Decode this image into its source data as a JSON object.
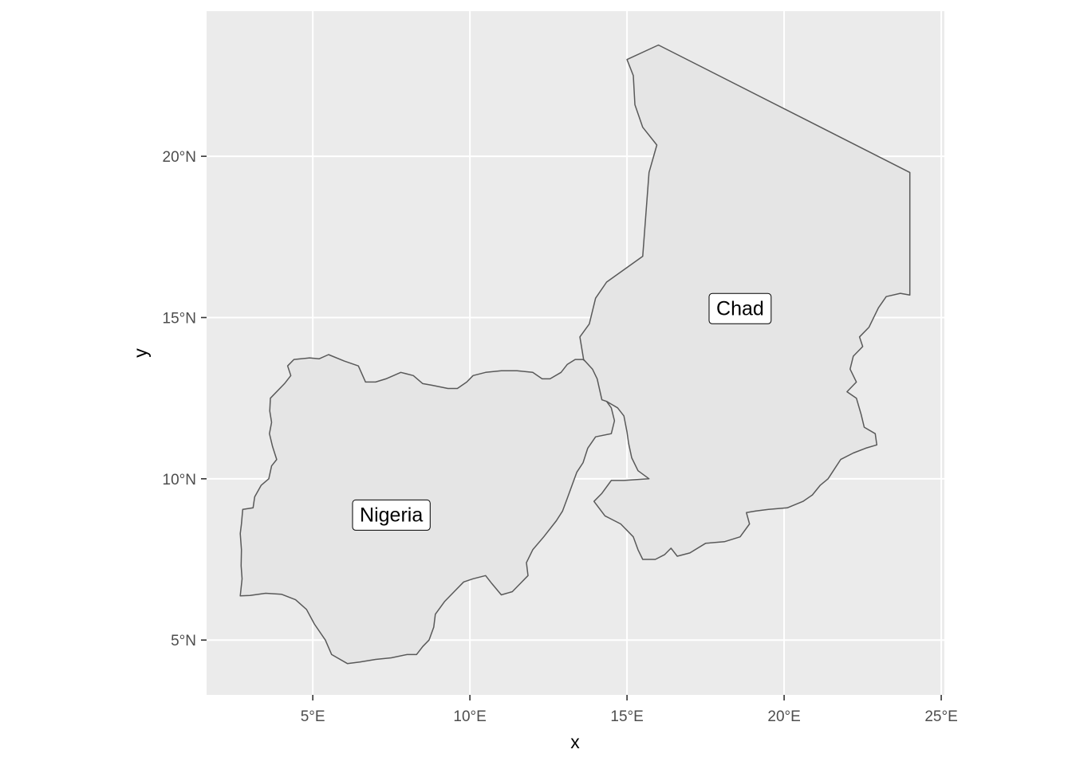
{
  "map": {
    "xlabel": "x",
    "ylabel": "y",
    "x_ticks": [
      {
        "value": 5,
        "label": "5°E"
      },
      {
        "value": 10,
        "label": "10°E"
      },
      {
        "value": 15,
        "label": "15°E"
      },
      {
        "value": 20,
        "label": "20°E"
      },
      {
        "value": 25,
        "label": "25°E"
      }
    ],
    "y_ticks": [
      {
        "value": 5,
        "label": "5°N"
      },
      {
        "value": 10,
        "label": "10°N"
      },
      {
        "value": 15,
        "label": "15°N"
      },
      {
        "value": 20,
        "label": "20°N"
      }
    ],
    "xlim": [
      1.62,
      25.1
    ],
    "ylim": [
      3.3,
      24.5
    ],
    "grid": true,
    "colors": {
      "panel": "#ebebeb",
      "grid": "#ffffff",
      "fill": "#e5e5e5",
      "outline": "#595959"
    },
    "countries": [
      {
        "id": "nigeria",
        "name": "Nigeria",
        "label_lon": 7.5,
        "label_lat": 8.9,
        "outline": [
          [
            2.69,
            6.37
          ],
          [
            2.75,
            6.9
          ],
          [
            2.72,
            7.3
          ],
          [
            2.73,
            7.8
          ],
          [
            2.69,
            8.3
          ],
          [
            2.73,
            8.6
          ],
          [
            2.77,
            9.05
          ],
          [
            3.1,
            9.1
          ],
          [
            3.15,
            9.44
          ],
          [
            3.36,
            9.8
          ],
          [
            3.6,
            10.0
          ],
          [
            3.69,
            10.4
          ],
          [
            3.85,
            10.6
          ],
          [
            3.72,
            11.0
          ],
          [
            3.62,
            11.4
          ],
          [
            3.69,
            11.75
          ],
          [
            3.63,
            12.1
          ],
          [
            3.65,
            12.5
          ],
          [
            4.1,
            12.95
          ],
          [
            4.3,
            13.2
          ],
          [
            4.2,
            13.5
          ],
          [
            4.4,
            13.7
          ],
          [
            4.9,
            13.75
          ],
          [
            5.2,
            13.72
          ],
          [
            5.5,
            13.85
          ],
          [
            6.0,
            13.65
          ],
          [
            6.45,
            13.5
          ],
          [
            6.68,
            13.0
          ],
          [
            7.0,
            13.0
          ],
          [
            7.33,
            13.1
          ],
          [
            7.8,
            13.3
          ],
          [
            8.2,
            13.2
          ],
          [
            8.5,
            12.95
          ],
          [
            8.8,
            12.9
          ],
          [
            9.3,
            12.8
          ],
          [
            9.6,
            12.8
          ],
          [
            9.9,
            13.0
          ],
          [
            10.1,
            13.2
          ],
          [
            10.5,
            13.3
          ],
          [
            11.0,
            13.35
          ],
          [
            11.5,
            13.35
          ],
          [
            12.0,
            13.3
          ],
          [
            12.3,
            13.1
          ],
          [
            12.55,
            13.1
          ],
          [
            12.9,
            13.3
          ],
          [
            13.1,
            13.55
          ],
          [
            13.35,
            13.7
          ],
          [
            13.6,
            13.7
          ],
          [
            14.0,
            13.4
          ],
          [
            14.15,
            13.0
          ],
          [
            14.2,
            12.5
          ],
          [
            14.35,
            12.4
          ],
          [
            14.5,
            12.2
          ],
          [
            14.6,
            11.8
          ],
          [
            14.5,
            11.4
          ],
          [
            14.0,
            11.3
          ],
          [
            13.75,
            10.95
          ],
          [
            13.6,
            10.5
          ],
          [
            13.4,
            10.2
          ],
          [
            13.25,
            9.8
          ],
          [
            13.1,
            9.4
          ],
          [
            12.95,
            9.0
          ],
          [
            12.75,
            8.7
          ],
          [
            12.35,
            8.2
          ],
          [
            12.0,
            7.8
          ],
          [
            11.8,
            7.4
          ],
          [
            11.85,
            7.0
          ],
          [
            11.6,
            6.75
          ],
          [
            11.35,
            6.5
          ],
          [
            11.0,
            6.4
          ],
          [
            10.7,
            6.75
          ],
          [
            10.5,
            7.0
          ],
          [
            10.1,
            6.9
          ],
          [
            9.8,
            6.8
          ],
          [
            9.5,
            6.5
          ],
          [
            9.2,
            6.2
          ],
          [
            8.9,
            5.8
          ],
          [
            8.85,
            5.4
          ],
          [
            8.7,
            5.0
          ],
          [
            8.5,
            4.8
          ],
          [
            8.3,
            4.55
          ],
          [
            8.0,
            4.55
          ],
          [
            7.5,
            4.45
          ],
          [
            7.0,
            4.4
          ],
          [
            6.5,
            4.32
          ],
          [
            6.1,
            4.27
          ],
          [
            5.6,
            4.55
          ],
          [
            5.4,
            5.0
          ],
          [
            5.05,
            5.5
          ],
          [
            4.8,
            5.95
          ],
          [
            4.45,
            6.25
          ],
          [
            4.0,
            6.42
          ],
          [
            3.5,
            6.45
          ],
          [
            3.0,
            6.38
          ],
          [
            2.69,
            6.37
          ]
        ]
      },
      {
        "id": "chad",
        "name": "Chad",
        "label_lon": 18.6,
        "label_lat": 15.3,
        "outline": [
          [
            15.0,
            23.0
          ],
          [
            16.0,
            23.45
          ],
          [
            24.0,
            19.5
          ],
          [
            24.0,
            15.7
          ],
          [
            23.7,
            15.75
          ],
          [
            23.25,
            15.65
          ],
          [
            23.0,
            15.3
          ],
          [
            22.7,
            14.7
          ],
          [
            22.4,
            14.4
          ],
          [
            22.5,
            14.1
          ],
          [
            22.2,
            13.8
          ],
          [
            22.1,
            13.4
          ],
          [
            22.3,
            13.0
          ],
          [
            22.0,
            12.7
          ],
          [
            22.3,
            12.5
          ],
          [
            22.45,
            12.0
          ],
          [
            22.55,
            11.6
          ],
          [
            22.9,
            11.4
          ],
          [
            22.95,
            11.05
          ],
          [
            22.6,
            10.95
          ],
          [
            22.2,
            10.8
          ],
          [
            21.8,
            10.6
          ],
          [
            21.6,
            10.3
          ],
          [
            21.4,
            10.0
          ],
          [
            21.15,
            9.8
          ],
          [
            20.9,
            9.5
          ],
          [
            20.6,
            9.3
          ],
          [
            20.1,
            9.1
          ],
          [
            19.5,
            9.05
          ],
          [
            19.1,
            9.0
          ],
          [
            18.8,
            8.95
          ],
          [
            18.9,
            8.6
          ],
          [
            18.6,
            8.2
          ],
          [
            18.1,
            8.05
          ],
          [
            17.5,
            8.0
          ],
          [
            17.0,
            7.7
          ],
          [
            16.6,
            7.6
          ],
          [
            16.4,
            7.85
          ],
          [
            16.2,
            7.65
          ],
          [
            15.9,
            7.5
          ],
          [
            15.5,
            7.5
          ],
          [
            15.35,
            7.8
          ],
          [
            15.2,
            8.2
          ],
          [
            14.8,
            8.6
          ],
          [
            14.3,
            8.85
          ],
          [
            13.95,
            9.3
          ],
          [
            14.2,
            9.55
          ],
          [
            14.5,
            9.95
          ],
          [
            14.9,
            9.95
          ],
          [
            15.7,
            10.0
          ],
          [
            15.35,
            10.25
          ],
          [
            15.15,
            10.65
          ],
          [
            15.05,
            11.1
          ],
          [
            15.0,
            11.45
          ],
          [
            14.9,
            11.95
          ],
          [
            14.7,
            12.2
          ],
          [
            14.35,
            12.4
          ],
          [
            14.2,
            12.45
          ],
          [
            14.05,
            13.1
          ],
          [
            13.9,
            13.4
          ],
          [
            13.62,
            13.7
          ],
          [
            13.5,
            14.4
          ],
          [
            13.8,
            14.8
          ],
          [
            14.0,
            15.6
          ],
          [
            14.35,
            16.1
          ],
          [
            15.5,
            16.9
          ],
          [
            15.7,
            19.5
          ],
          [
            15.95,
            20.35
          ],
          [
            15.5,
            20.9
          ],
          [
            15.25,
            21.6
          ],
          [
            15.2,
            22.5
          ],
          [
            15.0,
            23.0
          ]
        ]
      }
    ]
  }
}
